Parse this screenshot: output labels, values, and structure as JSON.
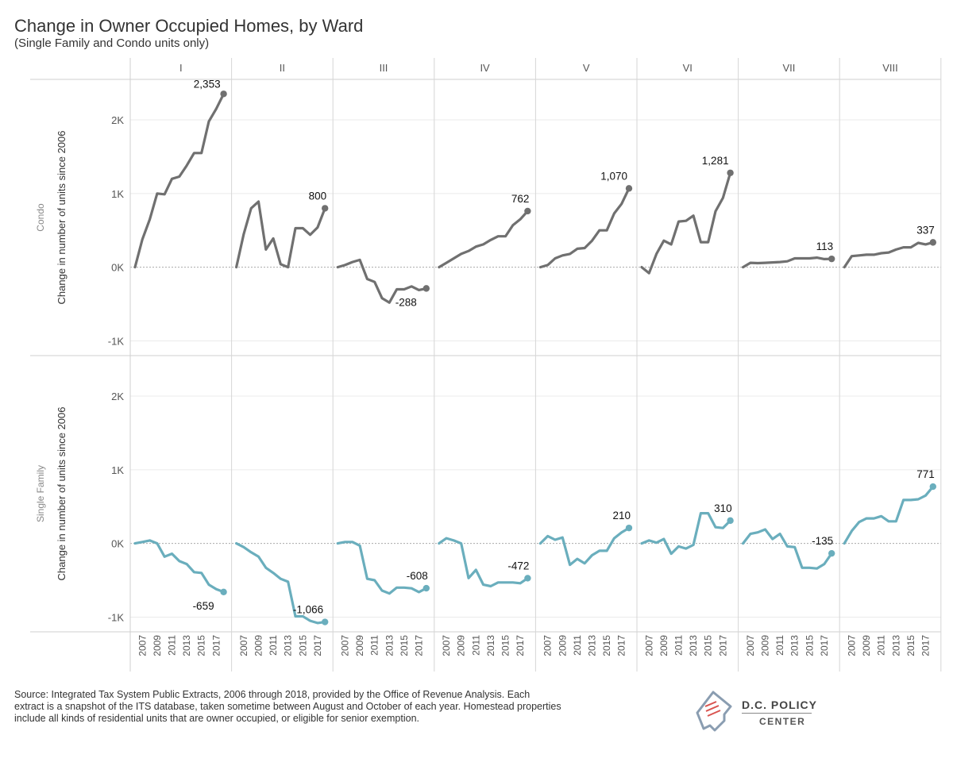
{
  "title": "Change in Owner Occupied Homes, by Ward",
  "subtitle": "(Single Family and Condo units only)",
  "source": "Source: Integrated Tax System Public Extracts, 2006 through 2018, provided by the Office of Revenue Analysis. Each extract is a snapshot of the ITS database, taken sometime between August and October of each year. Homestead properties include all kinds of residential units that are owner occupied, or eligible for senior exemption.",
  "logo": {
    "line1": "D.C. POLICY",
    "line2": "CENTER"
  },
  "colors": {
    "condo": "#707070",
    "single_family": "#6aaebd",
    "grid": "#d9d9d9",
    "zero": "#aaaaaa"
  },
  "chart_data": {
    "type": "line",
    "ylabel": "Change in number of units since 2006",
    "y_ticks": [
      {
        "value": 2000,
        "label": "2K"
      },
      {
        "value": 1000,
        "label": "1K"
      },
      {
        "value": 0,
        "label": "0K"
      },
      {
        "value": -1000,
        "label": "-1K"
      }
    ],
    "ylim": [
      -1200,
      2550
    ],
    "x": [
      2006,
      2007,
      2008,
      2009,
      2010,
      2011,
      2012,
      2013,
      2014,
      2015,
      2016,
      2017,
      2018
    ],
    "x_tick_labels": [
      "2007",
      "2009",
      "2011",
      "2013",
      "2015",
      "2017"
    ],
    "columns": [
      "I",
      "II",
      "III",
      "IV",
      "V",
      "VI",
      "VII",
      "VIII"
    ],
    "rows": [
      {
        "name": "Condo",
        "color": "#707070",
        "series": [
          {
            "ward": "I",
            "values": [
              0,
              380,
              650,
              1000,
              990,
              1200,
              1230,
              1380,
              1550,
              1550,
              1980,
              2150,
              2353
            ],
            "end_label": "2,353",
            "label_pos": "above-left"
          },
          {
            "ward": "II",
            "values": [
              0,
              450,
              800,
              890,
              240,
              390,
              40,
              0,
              530,
              530,
              440,
              540,
              800
            ],
            "end_label": "800",
            "label_pos": "above"
          },
          {
            "ward": "III",
            "values": [
              0,
              30,
              70,
              100,
              -160,
              -200,
              -420,
              -480,
              -300,
              -300,
              -260,
              -310,
              -288
            ],
            "end_label": "-288",
            "label_pos": "below"
          },
          {
            "ward": "IV",
            "values": [
              0,
              60,
              120,
              180,
              220,
              280,
              310,
              370,
              420,
              420,
              570,
              650,
              762
            ],
            "end_label": "762",
            "label_pos": "above"
          },
          {
            "ward": "V",
            "values": [
              0,
              30,
              120,
              160,
              180,
              250,
              260,
              360,
              500,
              500,
              730,
              860,
              1070
            ],
            "end_label": "1,070",
            "label_pos": "above"
          },
          {
            "ward": "VI",
            "values": [
              0,
              -80,
              180,
              360,
              310,
              620,
              630,
              700,
              340,
              340,
              760,
              940,
              1281
            ],
            "end_label": "1,281",
            "label_pos": "above"
          },
          {
            "ward": "VII",
            "values": [
              0,
              60,
              55,
              60,
              65,
              70,
              80,
              120,
              120,
              120,
              130,
              110,
              113
            ],
            "end_label": "113",
            "label_pos": "above"
          },
          {
            "ward": "VIII",
            "values": [
              0,
              150,
              160,
              170,
              170,
              190,
              200,
              240,
              270,
              270,
              330,
              310,
              337
            ],
            "end_label": "337",
            "label_pos": "above"
          }
        ]
      },
      {
        "name": "Single Family",
        "color": "#6aaebd",
        "series": [
          {
            "ward": "I",
            "values": [
              0,
              20,
              40,
              0,
              -180,
              -140,
              -240,
              -280,
              -390,
              -400,
              -560,
              -620,
              -659
            ],
            "end_label": "-659",
            "label_pos": "below"
          },
          {
            "ward": "II",
            "values": [
              0,
              -50,
              -120,
              -180,
              -330,
              -400,
              -480,
              -520,
              -990,
              -990,
              -1050,
              -1080,
              -1066
            ],
            "end_label": "-1,066",
            "label_pos": "above"
          },
          {
            "ward": "III",
            "values": [
              0,
              20,
              20,
              -30,
              -480,
              -500,
              -640,
              -680,
              -600,
              -600,
              -610,
              -660,
              -608
            ],
            "end_label": "-608",
            "label_pos": "above"
          },
          {
            "ward": "IV",
            "values": [
              0,
              70,
              40,
              0,
              -470,
              -360,
              -560,
              -580,
              -530,
              -530,
              -530,
              -540,
              -472
            ],
            "end_label": "-472",
            "label_pos": "above"
          },
          {
            "ward": "V",
            "values": [
              0,
              100,
              50,
              80,
              -290,
              -210,
              -270,
              -160,
              -100,
              -100,
              70,
              150,
              210
            ],
            "end_label": "210",
            "label_pos": "above"
          },
          {
            "ward": "VI",
            "values": [
              0,
              40,
              10,
              60,
              -140,
              -40,
              -70,
              -20,
              410,
              410,
              220,
              210,
              310
            ],
            "end_label": "310",
            "label_pos": "above"
          },
          {
            "ward": "VII",
            "values": [
              0,
              130,
              150,
              190,
              60,
              130,
              -40,
              -50,
              -330,
              -330,
              -340,
              -280,
              -135
            ],
            "end_label": "-135",
            "label_pos": "above"
          },
          {
            "ward": "VIII",
            "values": [
              0,
              170,
              290,
              340,
              340,
              370,
              300,
              300,
              590,
              590,
              600,
              650,
              771
            ],
            "end_label": "771",
            "label_pos": "above"
          }
        ]
      }
    ]
  }
}
